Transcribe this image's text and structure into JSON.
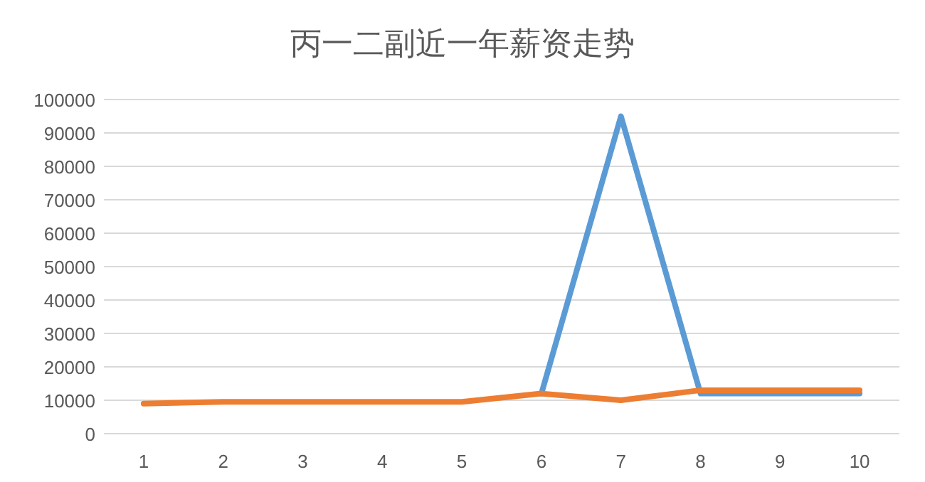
{
  "chart_data": {
    "type": "line",
    "title": "丙一二副近一年薪资走势",
    "categories": [
      "1",
      "2",
      "3",
      "4",
      "5",
      "6",
      "7",
      "8",
      "9",
      "10"
    ],
    "series": [
      {
        "color": "#5b9bd5",
        "values": [
          null,
          null,
          null,
          null,
          null,
          12000,
          95000,
          12000,
          12000,
          12000
        ]
      },
      {
        "color": "#ed7d31",
        "values": [
          9000,
          9500,
          9500,
          9500,
          9500,
          12000,
          10000,
          13000,
          13000,
          13000
        ]
      }
    ],
    "ylim": [
      0,
      100000
    ],
    "yticks": [
      0,
      10000,
      20000,
      30000,
      40000,
      50000,
      60000,
      70000,
      80000,
      90000,
      100000
    ],
    "grid": "y",
    "line_style": "solid"
  }
}
